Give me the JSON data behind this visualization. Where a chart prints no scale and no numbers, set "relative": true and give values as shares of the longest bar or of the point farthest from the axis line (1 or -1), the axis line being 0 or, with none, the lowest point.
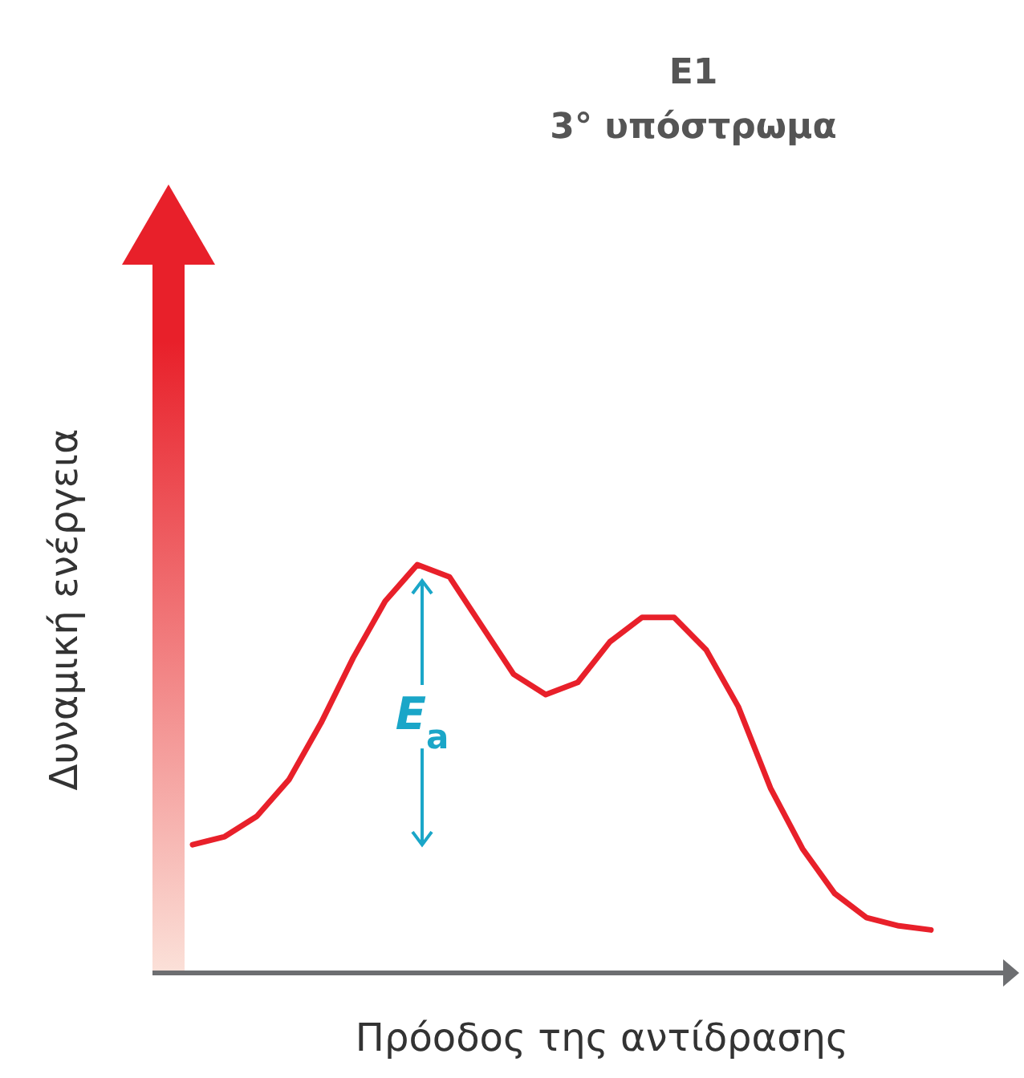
{
  "chart_data": {
    "type": "line",
    "title": "E1",
    "subtitle": "3° υπόστρωμα",
    "xlabel": "Πρόοδος της αντίδρασης",
    "ylabel": "Δυναμική ενέργεια",
    "relative": true,
    "marker": "none",
    "line_style": "solid",
    "categories": [
      null,
      null,
      null,
      null,
      null,
      null,
      null,
      null,
      null,
      null,
      null,
      null,
      null,
      null,
      null,
      null,
      null,
      null,
      null,
      null,
      null,
      null,
      null,
      null
    ],
    "series": [
      {
        "color": "#e8202a",
        "values": [
          0.31,
          0.33,
          0.38,
          0.47,
          0.61,
          0.77,
          0.91,
          1.0,
          0.97,
          0.85,
          0.73,
          0.68,
          0.71,
          0.81,
          0.87,
          0.87,
          0.79,
          0.65,
          0.45,
          0.3,
          0.19,
          0.13,
          0.11,
          0.1
        ]
      }
    ],
    "annotations": [
      "E$_{a}$"
    ]
  }
}
